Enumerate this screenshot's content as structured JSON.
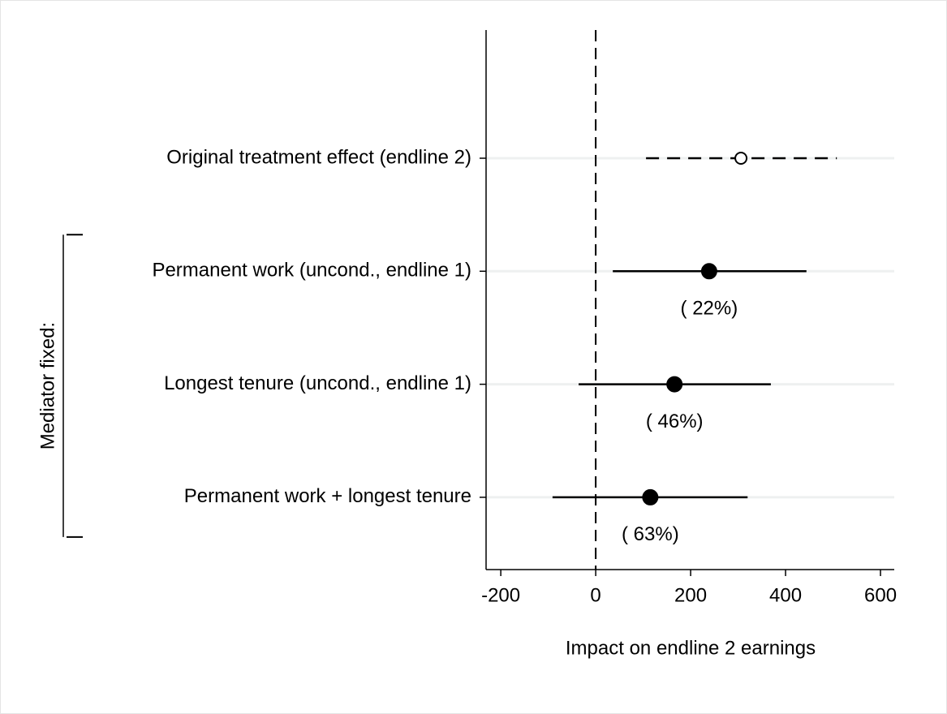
{
  "chart_data": {
    "type": "coefplot",
    "categories": [
      "Original treatment effect (endline 2)",
      "Permanent work (uncond., endline 1)",
      "Longest tenure (uncond., endline 1)",
      "Permanent work + longest tenure"
    ],
    "values": [
      306,
      239,
      166,
      115
    ],
    "ci_low": [
      106,
      36,
      -36,
      -91
    ],
    "ci_high": [
      508,
      444,
      369,
      320
    ],
    "marker_styles": [
      "hollow",
      "filled",
      "filled",
      "filled"
    ],
    "line_styles": [
      "dashed",
      "solid",
      "solid",
      "solid"
    ],
    "shares": {
      "values": [
        null,
        22,
        46,
        63
      ],
      "value_labels": [
        null,
        "(  22%)",
        "(  46%)",
        "(  63%)"
      ]
    },
    "group_label": "Mediator fixed:",
    "group_span": [
      1,
      3
    ],
    "xlabel": "Impact on endline 2 earnings",
    "xlim": [
      -231,
      629
    ],
    "xticks": [
      -200,
      0,
      200,
      400,
      600
    ],
    "xline": 0,
    "color": "#000000",
    "grid": true
  }
}
